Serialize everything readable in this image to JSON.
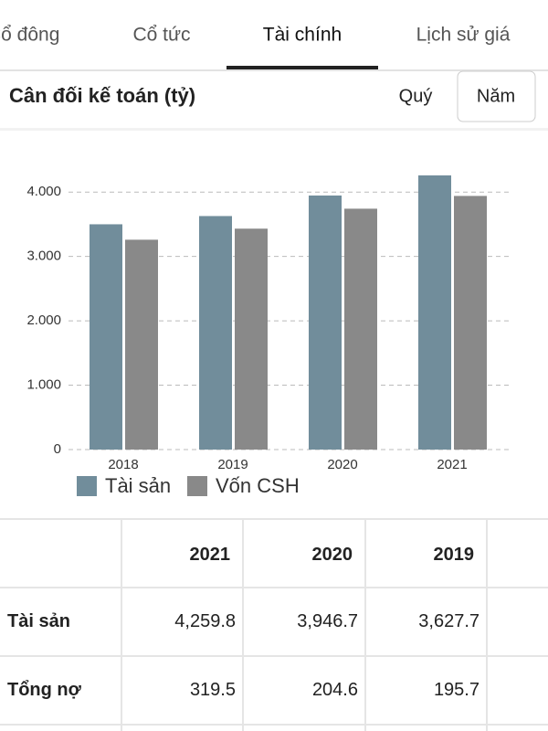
{
  "tabs": [
    "Cổ đông",
    "Cổ tức",
    "Tài chính",
    "Lịch sử giá"
  ],
  "section": {
    "title": "Cân đối kế toán (tỷ)",
    "periods": [
      "Quý",
      "Năm"
    ]
  },
  "chart_data": {
    "type": "bar",
    "categories": [
      "2018",
      "2019",
      "2020",
      "2021"
    ],
    "series": [
      {
        "name": "Tài sản",
        "color": "#718d9b",
        "values": [
          3500,
          3627.7,
          3946.7,
          4259.8
        ]
      },
      {
        "name": "Vốn CSH",
        "color": "#898989",
        "values": [
          3260,
          3432,
          3742.1,
          3940.3
        ]
      }
    ],
    "ylim": [
      0,
      4500
    ],
    "yticks": [
      0,
      {
        "value": 1000,
        "label": "1.000"
      },
      {
        "value": 2000,
        "label": "2.000"
      },
      {
        "value": 3000,
        "label": "3.000"
      },
      {
        "value": 4000,
        "label": "4.000"
      }
    ],
    "grid": true
  },
  "table": {
    "columns": [
      "2021",
      "2020",
      "2019"
    ],
    "rows": [
      {
        "label": "Tài sản",
        "values": [
          "4,259.8",
          "3,946.7",
          "3,627.7"
        ]
      },
      {
        "label": "Tổng nợ",
        "values": [
          "319.5",
          "204.6",
          "195.7"
        ]
      }
    ]
  }
}
